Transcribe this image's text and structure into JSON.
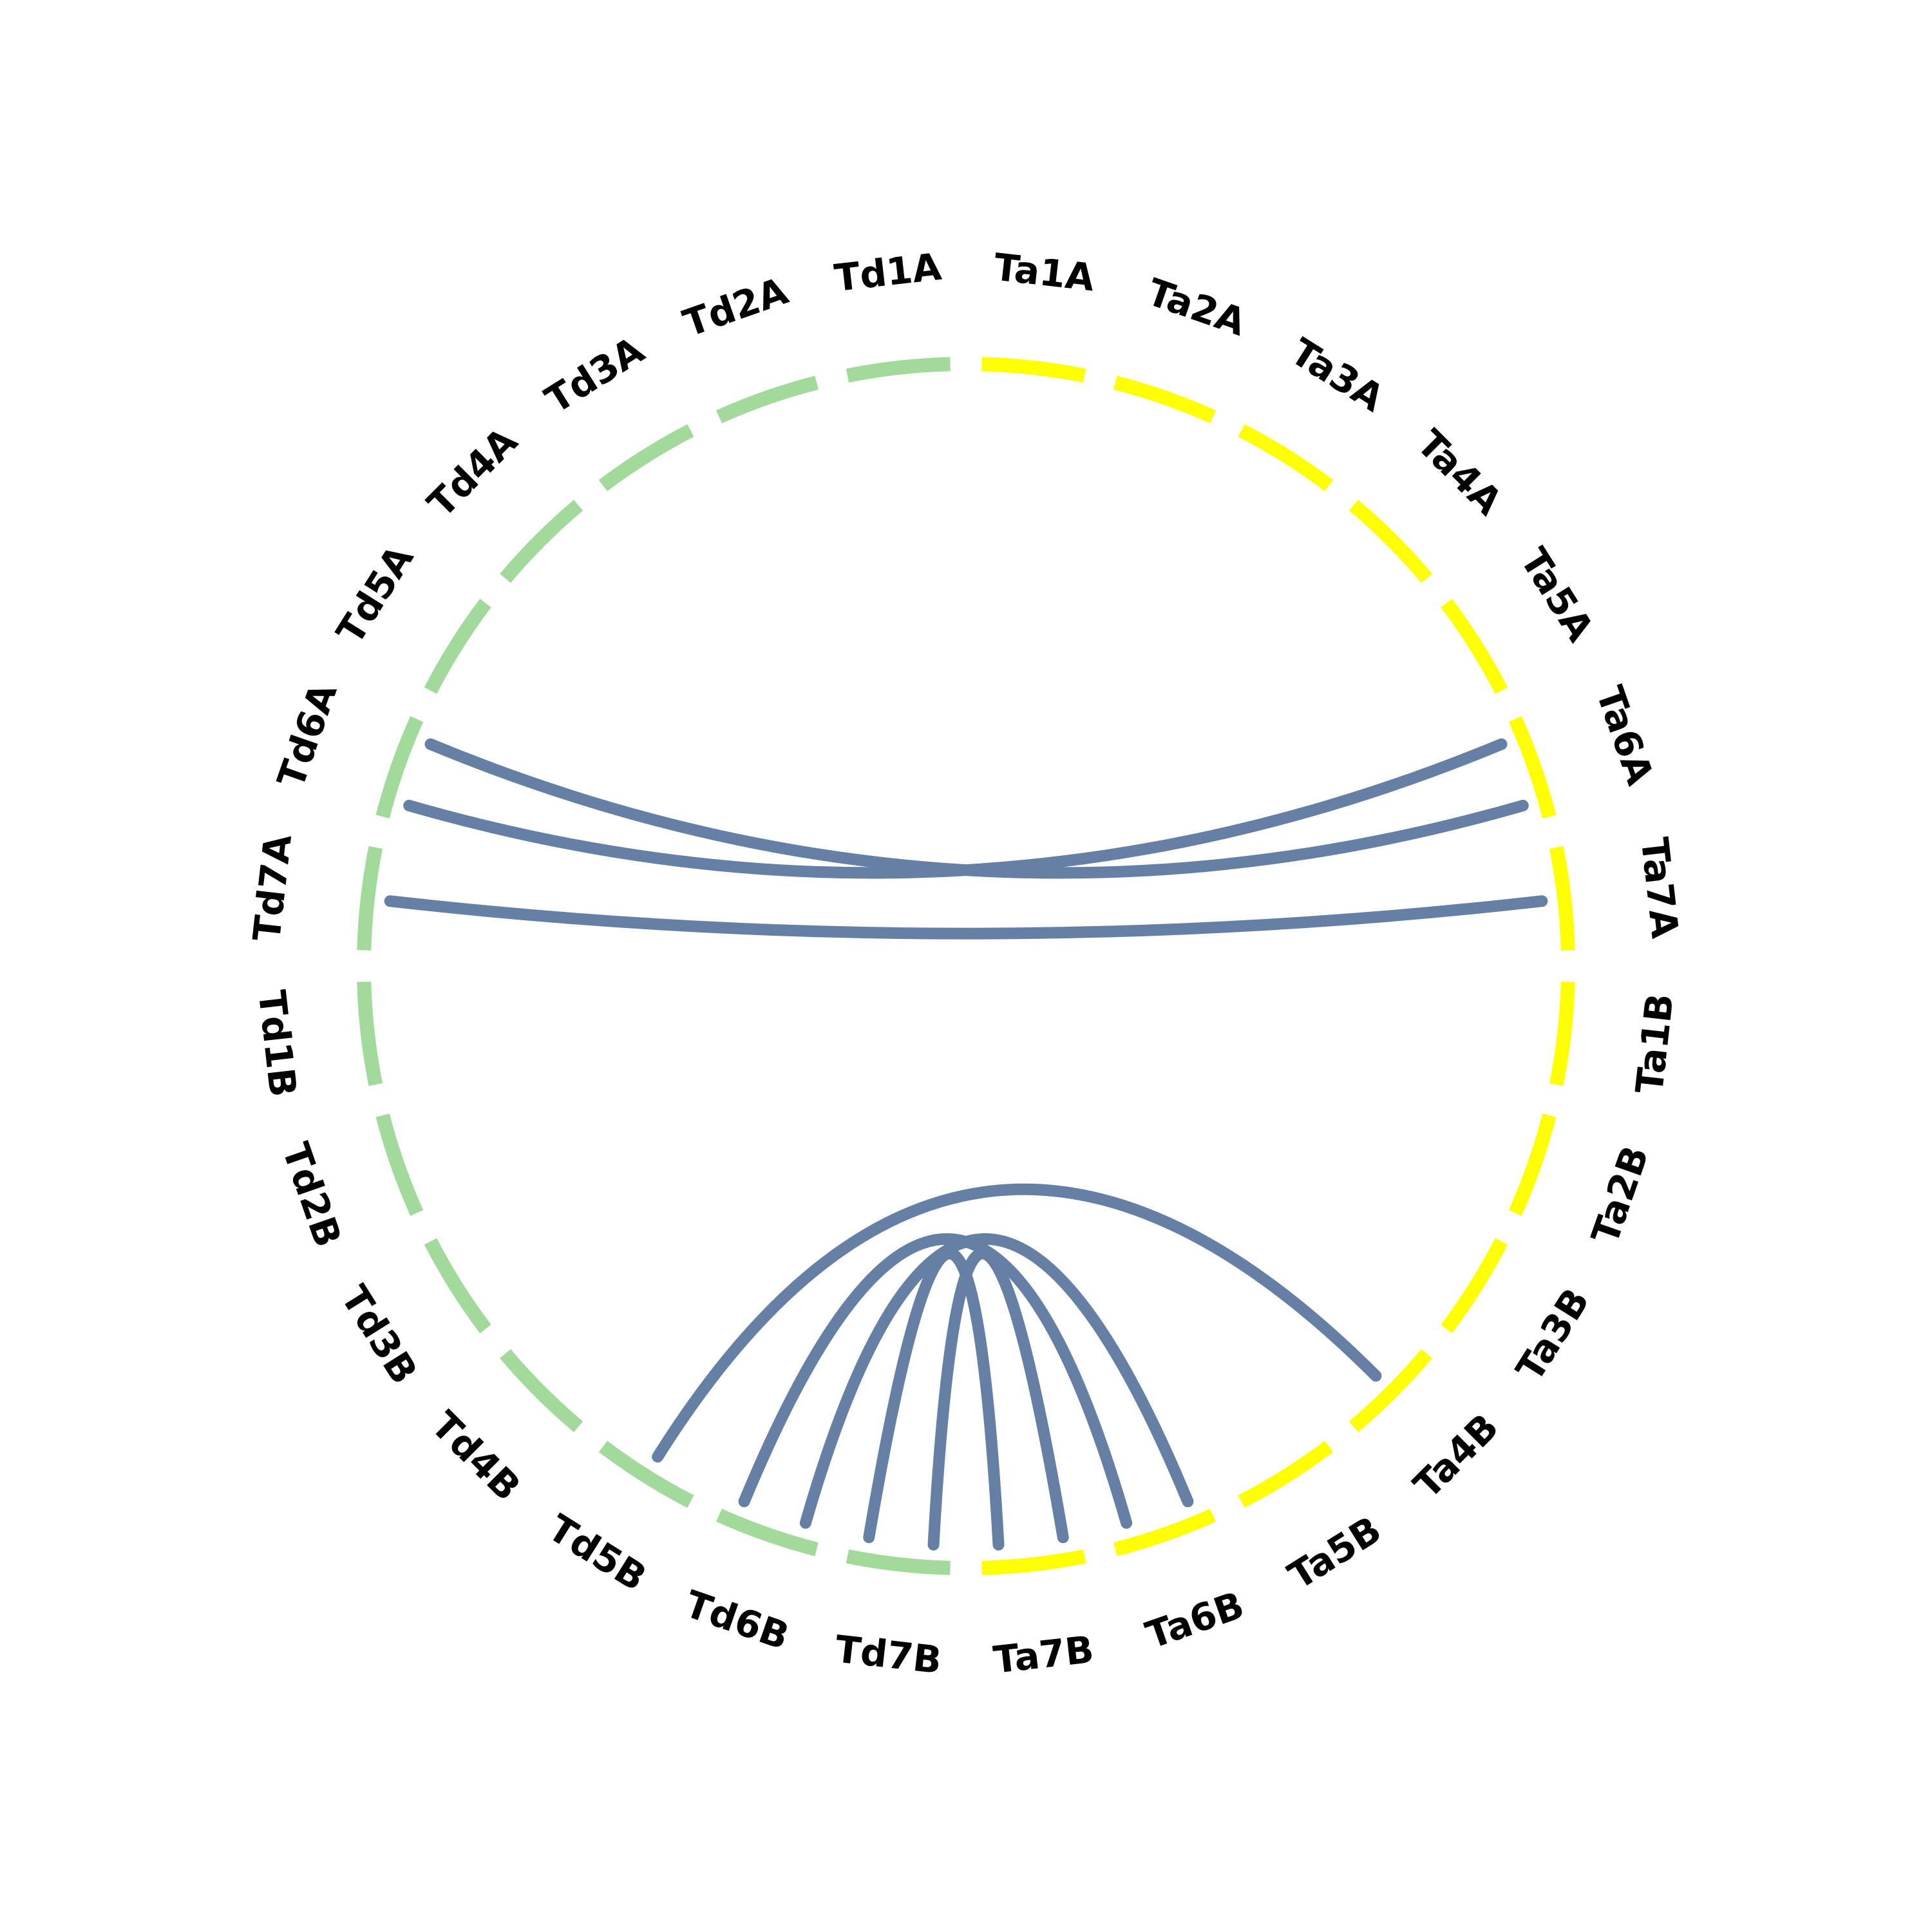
{
  "colors": {
    "td": "#a2da9c",
    "ta": "#ffff00",
    "link": "#6680a5",
    "label": "#000000",
    "background": "#ffffff"
  },
  "chart_data": {
    "type": "chord",
    "segments": [
      {
        "name": "Td1A",
        "group": "td"
      },
      {
        "name": "Td2A",
        "group": "td"
      },
      {
        "name": "Td3A",
        "group": "td"
      },
      {
        "name": "Td4A",
        "group": "td"
      },
      {
        "name": "Td5A",
        "group": "td"
      },
      {
        "name": "Td6A",
        "group": "td"
      },
      {
        "name": "Td7A",
        "group": "td"
      },
      {
        "name": "Td1B",
        "group": "td"
      },
      {
        "name": "Td2B",
        "group": "td"
      },
      {
        "name": "Td3B",
        "group": "td"
      },
      {
        "name": "Td4B",
        "group": "td"
      },
      {
        "name": "Td5B",
        "group": "td"
      },
      {
        "name": "Td6B",
        "group": "td"
      },
      {
        "name": "Td7B",
        "group": "td"
      },
      {
        "name": "Ta7B",
        "group": "ta"
      },
      {
        "name": "Ta6B",
        "group": "ta"
      },
      {
        "name": "Ta5B",
        "group": "ta"
      },
      {
        "name": "Ta4B",
        "group": "ta"
      },
      {
        "name": "Ta3B",
        "group": "ta"
      },
      {
        "name": "Ta2B",
        "group": "ta"
      },
      {
        "name": "Ta1B",
        "group": "ta"
      },
      {
        "name": "Ta7A",
        "group": "ta"
      },
      {
        "name": "Ta6A",
        "group": "ta"
      },
      {
        "name": "Ta5A",
        "group": "ta"
      },
      {
        "name": "Ta4A",
        "group": "ta"
      },
      {
        "name": "Ta3A",
        "group": "ta"
      },
      {
        "name": "Ta2A",
        "group": "ta"
      },
      {
        "name": "Ta1A",
        "group": "ta"
      }
    ],
    "links": [
      {
        "from": "Td6A",
        "to": "Ta6A"
      },
      {
        "from": "Td6A",
        "to": "Ta6A"
      },
      {
        "from": "Td7A",
        "to": "Ta7A"
      },
      {
        "from": "Td5B",
        "to": "Ta4B"
      },
      {
        "from": "Td6B",
        "to": "Ta6B"
      },
      {
        "from": "Td6B",
        "to": "Ta6B"
      },
      {
        "from": "Td7B",
        "to": "Ta7B"
      },
      {
        "from": "Td7B",
        "to": "Ta7B"
      }
    ]
  }
}
